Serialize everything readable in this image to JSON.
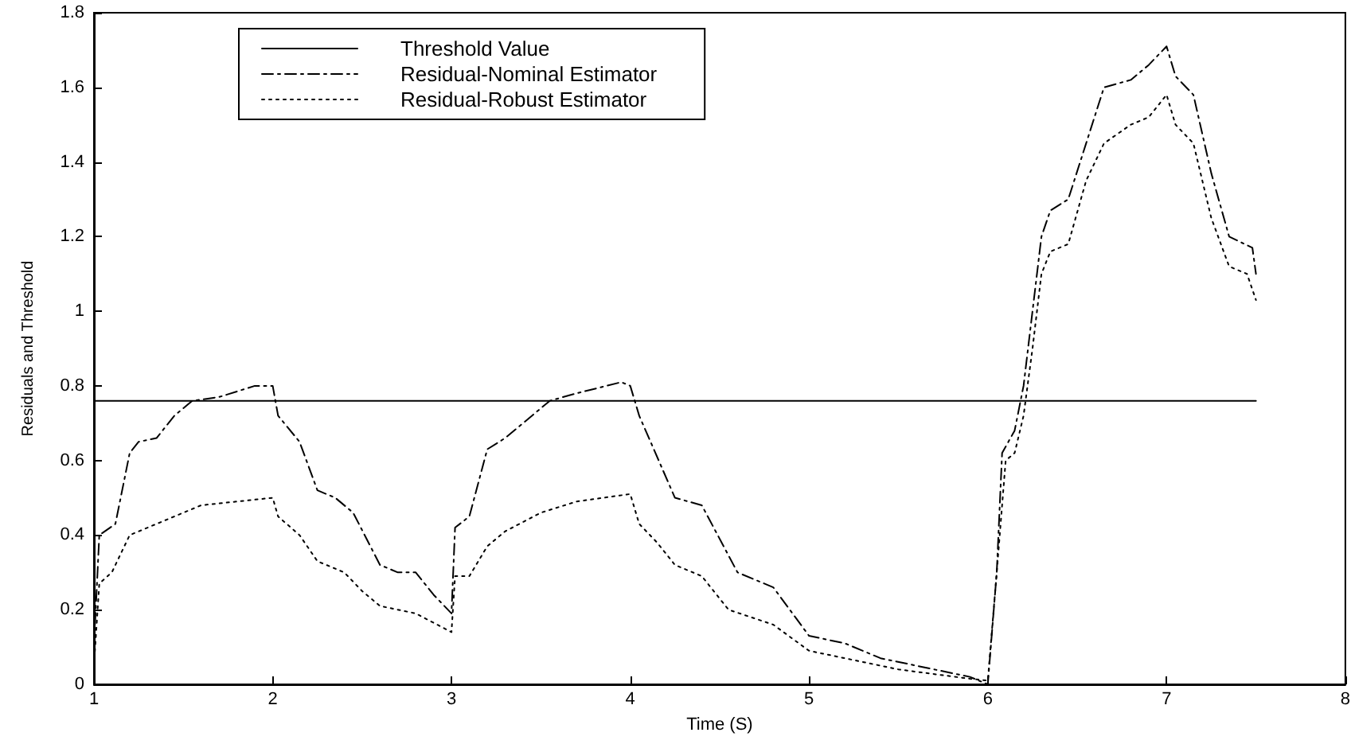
{
  "chart_data": {
    "type": "line",
    "xlabel": "Time (S)",
    "ylabel": "Residuals and Threshold",
    "xlim": [
      1,
      8
    ],
    "ylim": [
      0,
      1.8
    ],
    "xticks": [
      1,
      2,
      3,
      4,
      5,
      6,
      7,
      8
    ],
    "yticks": [
      0,
      0.2,
      0.4,
      0.6,
      0.8,
      1,
      1.2,
      1.4,
      1.6,
      1.8
    ],
    "grid": false,
    "legend": "top left",
    "marker": "none",
    "series": [
      {
        "name": "Threshold Value",
        "color": "#000000",
        "line_style": "solid",
        "x": [
          1,
          7.5
        ],
        "values": [
          0.76,
          0.76
        ]
      },
      {
        "name": "Residual-Nominal Estimator",
        "color": "#000000",
        "line_style": "dashed",
        "x": [
          1,
          1.03,
          1.12,
          1.2,
          1.25,
          1.35,
          1.45,
          1.55,
          1.7,
          1.9,
          2.0,
          2.03,
          2.15,
          2.25,
          2.35,
          2.45,
          2.6,
          2.7,
          2.8,
          2.9,
          3.0,
          3.02,
          3.1,
          3.2,
          3.3,
          3.4,
          3.55,
          3.7,
          3.95,
          4.0,
          4.05,
          4.25,
          4.4,
          4.6,
          4.8,
          5.0,
          5.2,
          5.4,
          5.6,
          5.9,
          6.0,
          6.05,
          6.08,
          6.15,
          6.2,
          6.25,
          6.3,
          6.35,
          6.45,
          6.55,
          6.65,
          6.8,
          6.9,
          7.0,
          7.05,
          7.15,
          7.25,
          7.35,
          7.48,
          7.5
        ],
        "values": [
          0.1,
          0.4,
          0.43,
          0.62,
          0.65,
          0.66,
          0.72,
          0.76,
          0.77,
          0.8,
          0.8,
          0.72,
          0.65,
          0.52,
          0.5,
          0.46,
          0.32,
          0.3,
          0.3,
          0.24,
          0.19,
          0.42,
          0.45,
          0.63,
          0.66,
          0.7,
          0.76,
          0.78,
          0.81,
          0.8,
          0.72,
          0.5,
          0.48,
          0.3,
          0.26,
          0.13,
          0.11,
          0.07,
          0.05,
          0.02,
          0.0,
          0.3,
          0.62,
          0.68,
          0.8,
          1.0,
          1.2,
          1.27,
          1.3,
          1.45,
          1.6,
          1.62,
          1.66,
          1.71,
          1.63,
          1.58,
          1.37,
          1.2,
          1.17,
          1.1
        ]
      },
      {
        "name": "Residual-Robust Estimator",
        "color": "#000000",
        "line_style": "dotted",
        "x": [
          1,
          1.03,
          1.1,
          1.2,
          1.3,
          1.45,
          1.6,
          1.8,
          2.0,
          2.03,
          2.15,
          2.25,
          2.4,
          2.5,
          2.6,
          2.8,
          3.0,
          3.02,
          3.1,
          3.2,
          3.3,
          3.5,
          3.7,
          4.0,
          4.05,
          4.15,
          4.25,
          4.4,
          4.55,
          4.8,
          5.0,
          5.2,
          5.5,
          5.9,
          6.0,
          6.05,
          6.1,
          6.15,
          6.2,
          6.25,
          6.3,
          6.35,
          6.45,
          6.55,
          6.65,
          6.8,
          6.9,
          7.0,
          7.05,
          7.15,
          7.25,
          7.35,
          7.45,
          7.5
        ],
        "values": [
          0.05,
          0.27,
          0.3,
          0.4,
          0.42,
          0.45,
          0.48,
          0.49,
          0.5,
          0.45,
          0.4,
          0.33,
          0.3,
          0.25,
          0.21,
          0.19,
          0.14,
          0.29,
          0.29,
          0.37,
          0.41,
          0.46,
          0.49,
          0.51,
          0.43,
          0.38,
          0.32,
          0.29,
          0.2,
          0.16,
          0.09,
          0.07,
          0.04,
          0.015,
          0.01,
          0.3,
          0.6,
          0.62,
          0.72,
          0.9,
          1.1,
          1.16,
          1.18,
          1.35,
          1.45,
          1.5,
          1.52,
          1.58,
          1.5,
          1.45,
          1.25,
          1.12,
          1.1,
          1.03
        ]
      }
    ]
  }
}
